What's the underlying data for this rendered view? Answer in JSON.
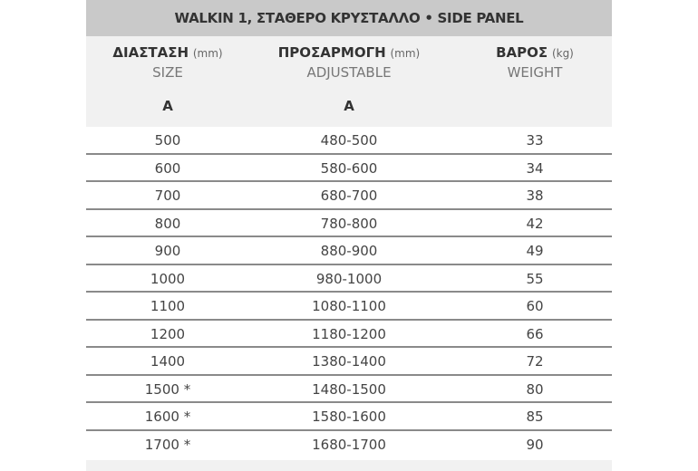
{
  "title": "WALKIN 1, ΣΤΑΘΕΡΟ ΚΡΥΣΤΑΛΛΟ • SIDE PANEL",
  "columns": [
    {
      "label": "ΔΙΑΣΤΑΣΗ",
      "unit": "(mm)",
      "sub": "SIZE",
      "letter": "A"
    },
    {
      "label": "ΠΡΟΣΑΡΜΟΓΗ",
      "unit": "(mm)",
      "sub": "ADJUSTABLE",
      "letter": "A"
    },
    {
      "label": "ΒΑΡΟΣ",
      "unit": "(kg)",
      "sub": "WEIGHT",
      "letter": ""
    }
  ],
  "rows": [
    [
      "500",
      "480-500",
      "33"
    ],
    [
      "600",
      "580-600",
      "34"
    ],
    [
      "700",
      "680-700",
      "38"
    ],
    [
      "800",
      "780-800",
      "42"
    ],
    [
      "900",
      "880-900",
      "49"
    ],
    [
      "1000",
      "980-1000",
      "55"
    ],
    [
      "1100",
      "1080-1100",
      "60"
    ],
    [
      "1200",
      "1180-1200",
      "66"
    ],
    [
      "1400",
      "1380-1400",
      "72"
    ],
    [
      "1500 *",
      "1480-1500",
      "80"
    ],
    [
      "1600 *",
      "1580-1600",
      "85"
    ],
    [
      "1700 *",
      "1680-1700",
      "90"
    ]
  ]
}
